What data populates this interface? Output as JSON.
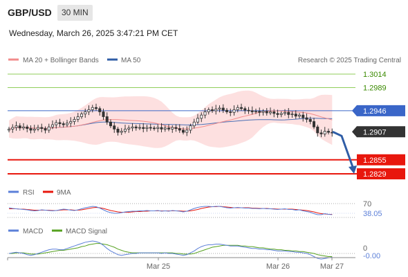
{
  "header": {
    "pair": "GBP/USD",
    "interval": "30 MIN",
    "datetime": "Wednesday, March 26, 2025 3:47:21 PM CET"
  },
  "legend": {
    "ma20_bb": "MA 20 + Bollinger Bands",
    "ma50": "MA 50",
    "credit": "Research © 2025 Trading Central",
    "rsi": "RSI",
    "rsi_ma": "9MA",
    "macd": "MACD",
    "macd_signal": "MACD Signal"
  },
  "colors": {
    "candle": "#333333",
    "ma20": "#f28b8b",
    "bollinger_fill": "#fde0e0",
    "ma50": "#4a6fb5",
    "resistance": "#8fce5a",
    "pivot": "#3a66c8",
    "support": "#e8170d",
    "current": "#333333",
    "forecast_arrow": "#2f5da6",
    "rsi": "#5b7fd8",
    "rsi_ma": "#e8170d",
    "macd": "#5b7fd8",
    "macd_signal": "#55a11f"
  },
  "chart_data": [
    {
      "type": "line",
      "subtype": "candlestick",
      "title": "",
      "ylim": [
        1.2815,
        1.3025
      ],
      "x_categories": [
        "Mar 25",
        "Mar 26",
        "Mar 27"
      ],
      "levels": [
        {
          "name": "resistance",
          "value": 1.3014,
          "label": "1.3014"
        },
        {
          "name": "resistance",
          "value": 1.2989,
          "label": "1.2989"
        },
        {
          "name": "pivot",
          "value": 1.2946,
          "label": "1.2946"
        },
        {
          "name": "current",
          "value": 1.2907,
          "label": "1.2907"
        },
        {
          "name": "support",
          "value": 1.2855,
          "label": "1.2855"
        },
        {
          "name": "support",
          "value": 1.2829,
          "label": "1.2829"
        }
      ],
      "forecast": {
        "from": 1.2907,
        "to": 1.2829
      },
      "close_series": [
        1.2912,
        1.2915,
        1.2918,
        1.2914,
        1.2916,
        1.2913,
        1.291,
        1.2912,
        1.2915,
        1.2913,
        1.291,
        1.2916,
        1.292,
        1.2924,
        1.2922,
        1.292,
        1.2923,
        1.2926,
        1.293,
        1.2935,
        1.294,
        1.2944,
        1.2948,
        1.2952,
        1.295,
        1.2944,
        1.2935,
        1.2925,
        1.2918,
        1.2912,
        1.2906,
        1.2908,
        1.2912,
        1.2914,
        1.2916,
        1.2914,
        1.2915,
        1.2913,
        1.2915,
        1.2914,
        1.2913,
        1.2915,
        1.2912,
        1.2914,
        1.2912,
        1.2915,
        1.2913,
        1.291,
        1.2906,
        1.291,
        1.2918,
        1.2925,
        1.2932,
        1.2938,
        1.2944,
        1.2948,
        1.2946,
        1.2949,
        1.2951,
        1.2947,
        1.2944,
        1.2943,
        1.2948,
        1.2952,
        1.295,
        1.2947,
        1.2946,
        1.2944,
        1.2945,
        1.2943,
        1.2945,
        1.2942,
        1.2944,
        1.2941,
        1.2939,
        1.2941,
        1.2943,
        1.2939,
        1.294,
        1.2936,
        1.2938,
        1.2933,
        1.293,
        1.2926,
        1.2916,
        1.2905,
        1.2903,
        1.2908,
        1.2906,
        1.2905
      ]
    },
    {
      "type": "line",
      "title": "",
      "levels": [
        70,
        30
      ],
      "level_labels": [
        "70"
      ],
      "last_value": 38.05,
      "last_label": "38.05",
      "rsi": [
        58,
        56,
        55,
        54,
        53,
        52,
        50,
        49,
        50,
        52,
        51,
        50,
        49,
        50,
        52,
        54,
        53,
        51,
        50,
        52,
        55,
        58,
        60,
        62,
        61,
        57,
        52,
        47,
        44,
        42,
        42,
        44,
        46,
        47,
        48,
        48,
        49,
        49,
        50,
        49,
        49,
        50,
        48,
        49,
        48,
        50,
        49,
        48,
        46,
        48,
        52,
        56,
        59,
        61,
        62,
        62,
        61,
        62,
        62,
        60,
        58,
        57,
        58,
        59,
        58,
        57,
        57,
        56,
        56,
        55,
        56,
        55,
        55,
        54,
        53,
        54,
        55,
        53,
        53,
        51,
        52,
        49,
        47,
        45,
        41,
        38,
        38,
        41,
        39,
        38
      ],
      "rsi_ma": [
        55,
        55,
        55,
        54,
        54,
        53,
        52,
        51,
        51,
        51,
        51,
        51,
        50,
        50,
        51,
        52,
        52,
        52,
        51,
        51,
        52,
        54,
        56,
        58,
        59,
        58,
        56,
        53,
        50,
        48,
        46,
        45,
        45,
        45,
        46,
        47,
        47,
        48,
        48,
        49,
        49,
        49,
        49,
        49,
        49,
        49,
        49,
        49,
        48,
        48,
        49,
        51,
        53,
        56,
        58,
        60,
        61,
        61,
        62,
        61,
        60,
        59,
        58,
        58,
        58,
        58,
        58,
        57,
        57,
        56,
        56,
        56,
        55,
        55,
        54,
        54,
        54,
        54,
        54,
        53,
        52,
        51,
        50,
        48,
        46,
        43,
        41,
        40,
        39,
        39
      ]
    },
    {
      "type": "line",
      "title": "",
      "levels": [
        0
      ],
      "level_labels": [
        "0"
      ],
      "last_value": -0.0,
      "last_label": "-0.00",
      "macd": [
        0.0,
        0.0001,
        0.0002,
        0.0001,
        0.0,
        -0.0002,
        -0.0003,
        -0.0002,
        0.0,
        0.0002,
        0.0004,
        0.0006,
        0.0007,
        0.0007,
        0.0006,
        0.0006,
        0.0008,
        0.001,
        0.0012,
        0.0014,
        0.0016,
        0.0018,
        0.0019,
        0.002,
        0.0019,
        0.0017,
        0.0013,
        0.0008,
        0.0004,
        0.0001,
        -0.0002,
        -0.0003,
        -0.0002,
        -0.0001,
        0.0,
        0.0,
        0.0001,
        0.0001,
        0.0001,
        0.0001,
        0.0001,
        0.0001,
        0.0,
        0.0001,
        0.0,
        0.0,
        -0.0001,
        -0.0002,
        -0.0003,
        -0.0002,
        0.0001,
        0.0004,
        0.0008,
        0.0011,
        0.0013,
        0.0014,
        0.0014,
        0.0015,
        0.0015,
        0.0014,
        0.0013,
        0.0012,
        0.0012,
        0.0012,
        0.0011,
        0.001,
        0.0009,
        0.0008,
        0.0008,
        0.0007,
        0.0007,
        0.0006,
        0.0006,
        0.0005,
        0.0004,
        0.0004,
        0.0004,
        0.0003,
        0.0003,
        0.0002,
        0.0002,
        0.0001,
        0.0,
        -0.0002,
        -0.0005,
        -0.0008,
        -0.0009,
        -0.0008,
        -0.0007,
        -0.0006
      ],
      "macd_signal": [
        0.0,
        0.0,
        0.0001,
        0.0001,
        0.0001,
        0.0,
        -0.0001,
        -0.0001,
        -0.0001,
        0.0,
        0.0001,
        0.0002,
        0.0003,
        0.0004,
        0.0005,
        0.0005,
        0.0006,
        0.0007,
        0.0008,
        0.0009,
        0.0011,
        0.0012,
        0.0014,
        0.0015,
        0.0016,
        0.0016,
        0.0015,
        0.0014,
        0.0012,
        0.001,
        0.0007,
        0.0005,
        0.0003,
        0.0002,
        0.0001,
        0.0001,
        0.0001,
        0.0001,
        0.0001,
        0.0001,
        0.0001,
        0.0001,
        0.0001,
        0.0001,
        0.0001,
        0.0001,
        0.0,
        0.0,
        -0.0001,
        -0.0001,
        -0.0001,
        0.0,
        0.0002,
        0.0004,
        0.0006,
        0.0008,
        0.001,
        0.0011,
        0.0012,
        0.0013,
        0.0013,
        0.0013,
        0.0013,
        0.0013,
        0.0012,
        0.0012,
        0.0011,
        0.0011,
        0.001,
        0.0009,
        0.0009,
        0.0008,
        0.0007,
        0.0007,
        0.0006,
        0.0006,
        0.0005,
        0.0005,
        0.0004,
        0.0004,
        0.0003,
        0.0003,
        0.0002,
        0.0001,
        0.0,
        -0.0002,
        -0.0003,
        -0.0004,
        -0.0005,
        -0.0005
      ]
    }
  ]
}
